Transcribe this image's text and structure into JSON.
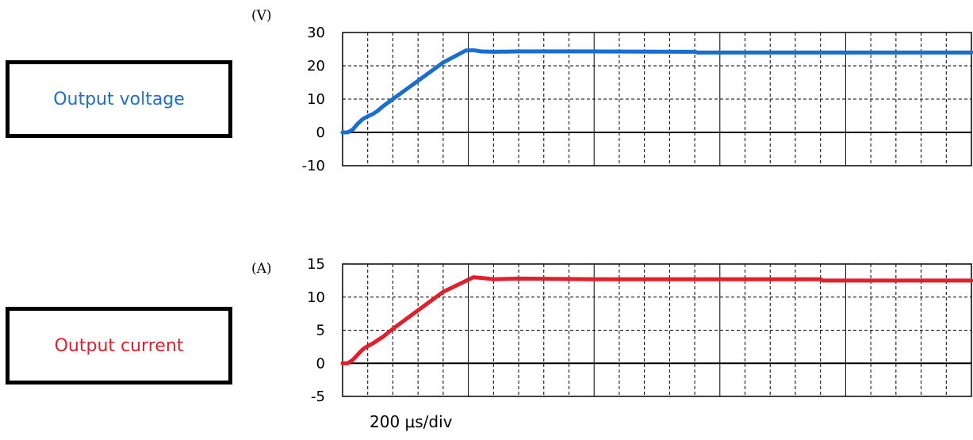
{
  "labels": {
    "voltage": {
      "text": "Output voltage",
      "color": "#1c6fd0"
    },
    "current": {
      "text": "Output current",
      "color": "#e0202a"
    }
  },
  "time_per_div": "200 μs/div",
  "chart_data": [
    {
      "type": "line",
      "unit_label": "(V)",
      "ylim": [
        -10,
        30
      ],
      "yticks": [
        30,
        20,
        10,
        0,
        -10
      ],
      "x_divisions": 25,
      "grid": true,
      "series": [
        {
          "color": "#1a6ed0",
          "points": [
            [
              0,
              0
            ],
            [
              0.2,
              0
            ],
            [
              0.4,
              0.8
            ],
            [
              0.6,
              2.6
            ],
            [
              0.8,
              4.0
            ],
            [
              1.0,
              4.8
            ],
            [
              1.2,
              5.5
            ],
            [
              1.4,
              6.5
            ],
            [
              1.6,
              7.8
            ],
            [
              2.0,
              10
            ],
            [
              3.0,
              15.5
            ],
            [
              4.0,
              21
            ],
            [
              4.9,
              24.6
            ],
            [
              5.2,
              24.7
            ],
            [
              5.5,
              24.3
            ],
            [
              6.0,
              24.2
            ],
            [
              7.0,
              24.3
            ],
            [
              10.0,
              24.3
            ],
            [
              14.0,
              24.2
            ],
            [
              14.1,
              24.0
            ],
            [
              20.0,
              24.0
            ],
            [
              25.0,
              24.0
            ]
          ]
        }
      ]
    },
    {
      "type": "line",
      "unit_label": "(A)",
      "ylim": [
        -5,
        15
      ],
      "yticks": [
        15,
        10,
        5,
        0,
        -5
      ],
      "x_divisions": 25,
      "grid": true,
      "series": [
        {
          "color": "#e0202a",
          "points": [
            [
              0,
              0
            ],
            [
              0.2,
              0
            ],
            [
              0.4,
              0.5
            ],
            [
              0.6,
              1.3
            ],
            [
              0.8,
              2.1
            ],
            [
              1.0,
              2.6
            ],
            [
              1.2,
              3.0
            ],
            [
              1.4,
              3.5
            ],
            [
              1.6,
              4.0
            ],
            [
              2.0,
              5.2
            ],
            [
              3.0,
              8.0
            ],
            [
              4.0,
              10.8
            ],
            [
              5.2,
              13.0
            ],
            [
              5.5,
              12.9
            ],
            [
              6.0,
              12.7
            ],
            [
              7.0,
              12.8
            ],
            [
              10.0,
              12.7
            ],
            [
              19.0,
              12.7
            ],
            [
              19.1,
              12.5
            ],
            [
              25.0,
              12.5
            ]
          ]
        }
      ]
    }
  ]
}
